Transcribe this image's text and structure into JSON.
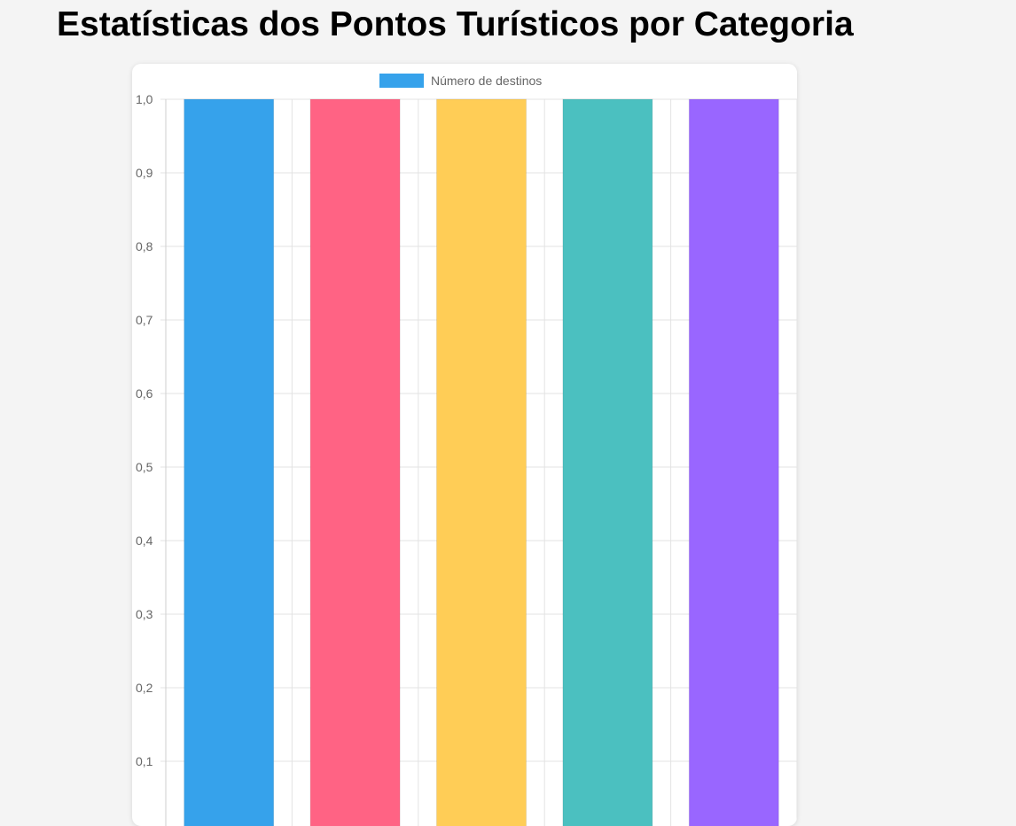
{
  "page": {
    "title": "Estatísticas dos Pontos Turísticos por Categoria"
  },
  "chart_data": {
    "type": "bar",
    "categories": [
      "",
      "",
      "",
      "",
      ""
    ],
    "series": [
      {
        "name": "Número de destinos",
        "values": [
          1,
          1,
          1,
          1,
          1
        ],
        "colors": [
          "#36a2eb",
          "#ff6384",
          "#ffcd56",
          "#4bc0c0",
          "#9966ff"
        ],
        "legend_color": "#36a2eb"
      }
    ],
    "y_ticks": [
      "1,0",
      "0,9",
      "0,8",
      "0,7",
      "0,6",
      "0,5",
      "0,4",
      "0,3",
      "0,2",
      "0,1"
    ],
    "ylim": [
      0,
      1.0
    ],
    "grid": true,
    "legend_position": "top-center",
    "title": "",
    "xlabel": "",
    "ylabel": ""
  }
}
